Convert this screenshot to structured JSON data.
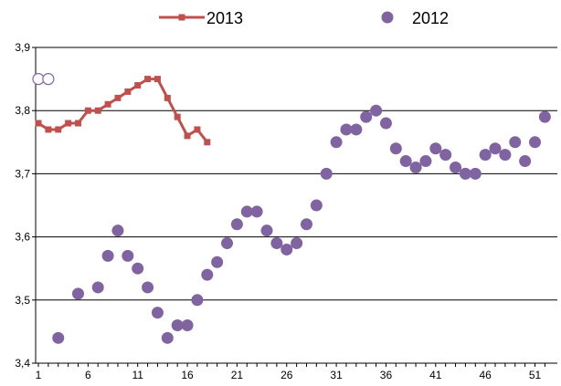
{
  "chart_data": {
    "type": "line",
    "title": "",
    "xlabel": "",
    "ylabel": "",
    "xlim": [
      1,
      52
    ],
    "ylim": [
      3.4,
      3.9
    ],
    "x_ticks": [
      1,
      6,
      11,
      16,
      21,
      26,
      31,
      36,
      41,
      46,
      51
    ],
    "x_tick_labels": [
      "1",
      "6",
      "11",
      "16",
      "21",
      "26",
      "31",
      "36",
      "41",
      "46",
      "51"
    ],
    "y_ticks": [
      3.4,
      3.5,
      3.6,
      3.7,
      3.8,
      3.9
    ],
    "y_tick_labels": [
      "3,4",
      "3,5",
      "3,6",
      "3,7",
      "3,8",
      "3,9"
    ],
    "grid": {
      "horizontal": true,
      "vertical": false
    },
    "legend": {
      "position": "top",
      "entries": [
        "2013",
        "2012"
      ]
    },
    "series": [
      {
        "name": "2013",
        "style": "line-square-markers",
        "color": "#c0504d",
        "x": [
          1,
          2,
          3,
          4,
          5,
          6,
          7,
          8,
          9,
          10,
          11,
          12,
          13,
          14,
          15,
          16,
          17,
          18
        ],
        "values": [
          3.78,
          3.77,
          3.77,
          3.78,
          3.78,
          3.8,
          3.8,
          3.81,
          3.82,
          3.83,
          3.84,
          3.85,
          3.85,
          3.82,
          3.79,
          3.76,
          3.77,
          3.75
        ]
      },
      {
        "name": "2012",
        "style": "circle-markers",
        "color": "#8064a2",
        "x": [
          3,
          5,
          7,
          8,
          9,
          10,
          11,
          12,
          13,
          14,
          15,
          16,
          17,
          18,
          19,
          20,
          21,
          22,
          23,
          24,
          25,
          26,
          27,
          28,
          29,
          30,
          31,
          32,
          33,
          34,
          35,
          36,
          37,
          38,
          39,
          40,
          41,
          42,
          43,
          44,
          45,
          46,
          47,
          48,
          49,
          50,
          51,
          52
        ],
        "values": [
          3.44,
          3.51,
          3.52,
          3.57,
          3.61,
          3.57,
          3.55,
          3.52,
          3.48,
          3.44,
          3.46,
          3.46,
          3.5,
          3.54,
          3.56,
          3.59,
          3.62,
          3.64,
          3.64,
          3.61,
          3.59,
          3.58,
          3.59,
          3.62,
          3.65,
          3.7,
          3.75,
          3.77,
          3.77,
          3.79,
          3.8,
          3.78,
          3.74,
          3.72,
          3.71,
          3.72,
          3.74,
          3.73,
          3.71,
          3.7,
          3.7,
          3.73,
          3.74,
          3.73,
          3.75,
          3.72,
          3.75,
          3.79
        ]
      },
      {
        "name": "",
        "style": "hollow-circle-markers",
        "color": "#8064a2",
        "x": [
          1,
          2
        ],
        "values": [
          3.85,
          3.85
        ]
      }
    ]
  }
}
